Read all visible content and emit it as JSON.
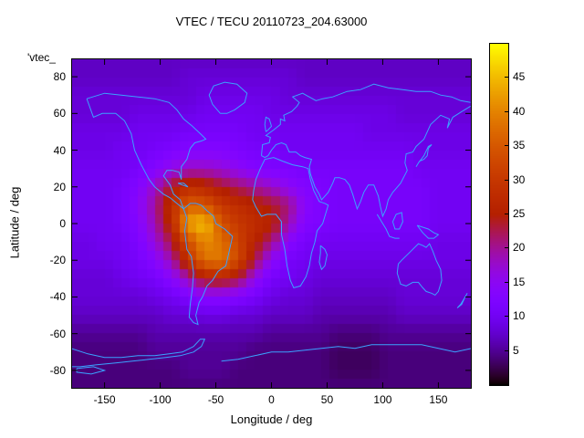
{
  "title": "VTEC / TECU 20110723_204.63000",
  "key_label": "'vtec_",
  "axes": {
    "xlabel": "Longitude / deg",
    "ylabel": "Latitude / deg",
    "x_range": [
      -180,
      180
    ],
    "y_range": [
      -90,
      90
    ],
    "x_ticks": [
      -150,
      -100,
      -50,
      0,
      50,
      100,
      150
    ],
    "y_ticks": [
      -80,
      -60,
      -40,
      -20,
      0,
      20,
      40,
      60,
      80
    ]
  },
  "colorbar": {
    "range": [
      0,
      50
    ],
    "ticks": [
      5,
      10,
      15,
      20,
      25,
      30,
      35,
      40,
      45
    ]
  },
  "chart_data": {
    "type": "heatmap",
    "title": "VTEC / TECU 20110723_204.63000",
    "xlabel": "Longitude / deg",
    "ylabel": "Latitude / deg",
    "x_range": [
      -180,
      180
    ],
    "y_range": [
      -90,
      90
    ],
    "colormap": "gnuplot black-violet-red-yellow",
    "colorbar_range": [
      0,
      50
    ],
    "colorbar_ticks": [
      5,
      10,
      15,
      20,
      25,
      30,
      35,
      40,
      45
    ],
    "coastline_color": "#3ba2ff",
    "units": "TECU",
    "lon": [
      -180,
      -165,
      -150,
      -135,
      -120,
      -105,
      -90,
      -75,
      -60,
      -45,
      -30,
      -15,
      0,
      15,
      30,
      45,
      60,
      75,
      90,
      105,
      120,
      135,
      150,
      165,
      180
    ],
    "lat": [
      90,
      80,
      70,
      60,
      50,
      40,
      30,
      20,
      10,
      0,
      -10,
      -20,
      -30,
      -40,
      -50,
      -60,
      -70,
      -80,
      -90
    ],
    "values_tecu": [
      [
        7,
        7,
        7,
        7,
        7,
        7,
        7,
        7,
        7,
        7,
        7,
        7,
        7,
        7,
        7,
        7,
        7,
        7,
        7,
        7,
        7,
        7,
        7,
        7,
        7
      ],
      [
        7,
        7,
        7,
        7,
        7,
        7,
        7,
        8,
        8,
        8,
        8,
        8,
        8,
        8,
        7,
        7,
        7,
        7,
        7,
        7,
        7,
        7,
        7,
        7,
        7
      ],
      [
        8,
        8,
        8,
        8,
        8,
        8,
        8,
        8,
        9,
        9,
        9,
        9,
        9,
        8,
        8,
        8,
        8,
        8,
        8,
        8,
        8,
        8,
        8,
        8,
        8
      ],
      [
        8,
        8,
        8,
        8,
        9,
        9,
        9,
        9,
        10,
        10,
        10,
        10,
        9,
        9,
        9,
        9,
        9,
        9,
        9,
        9,
        8,
        8,
        8,
        8,
        8
      ],
      [
        9,
        9,
        9,
        9,
        10,
        10,
        10,
        11,
        11,
        11,
        11,
        10,
        10,
        10,
        10,
        10,
        10,
        10,
        9,
        9,
        9,
        9,
        9,
        9,
        9
      ],
      [
        9,
        9,
        9,
        10,
        10,
        11,
        12,
        13,
        13,
        13,
        12,
        11,
        11,
        10,
        10,
        10,
        10,
        10,
        10,
        10,
        10,
        9,
        9,
        9,
        9
      ],
      [
        10,
        10,
        10,
        10,
        11,
        13,
        16,
        18,
        18,
        17,
        15,
        13,
        12,
        12,
        11,
        11,
        11,
        11,
        11,
        11,
        11,
        10,
        10,
        10,
        10
      ],
      [
        10,
        10,
        10,
        11,
        13,
        18,
        24,
        28,
        27,
        24,
        22,
        20,
        18,
        15,
        13,
        12,
        11,
        11,
        11,
        11,
        11,
        11,
        10,
        10,
        10
      ],
      [
        10,
        10,
        10,
        11,
        14,
        20,
        28,
        36,
        35,
        30,
        28,
        26,
        24,
        21,
        14,
        12,
        11,
        11,
        11,
        11,
        11,
        11,
        10,
        10,
        10
      ],
      [
        10,
        10,
        10,
        11,
        13,
        19,
        27,
        43,
        46,
        34,
        30,
        28,
        26,
        19,
        13,
        12,
        11,
        11,
        11,
        11,
        11,
        11,
        10,
        10,
        10
      ],
      [
        9,
        9,
        10,
        10,
        12,
        17,
        23,
        33,
        41,
        38,
        32,
        26,
        21,
        14,
        11,
        10,
        10,
        10,
        10,
        10,
        10,
        10,
        9,
        9,
        9
      ],
      [
        9,
        9,
        9,
        10,
        11,
        14,
        19,
        29,
        38,
        39,
        33,
        23,
        15,
        11,
        10,
        9,
        9,
        9,
        9,
        9,
        9,
        9,
        9,
        9,
        9
      ],
      [
        8,
        8,
        8,
        9,
        10,
        11,
        14,
        19,
        25,
        26,
        23,
        16,
        11,
        10,
        9,
        8,
        8,
        8,
        8,
        8,
        8,
        8,
        8,
        8,
        8
      ],
      [
        8,
        8,
        8,
        8,
        8,
        9,
        10,
        12,
        14,
        14,
        13,
        11,
        9,
        8,
        8,
        7,
        7,
        7,
        7,
        7,
        8,
        8,
        8,
        8,
        8
      ],
      [
        7,
        7,
        7,
        7,
        7,
        7,
        8,
        8,
        9,
        9,
        8,
        8,
        7,
        7,
        7,
        6,
        6,
        6,
        6,
        6,
        7,
        7,
        7,
        7,
        7
      ],
      [
        5,
        5,
        5,
        5,
        5,
        6,
        6,
        6,
        6,
        6,
        6,
        6,
        5,
        5,
        5,
        5,
        4,
        4,
        4,
        5,
        5,
        5,
        5,
        5,
        5
      ],
      [
        4,
        4,
        4,
        4,
        4,
        5,
        5,
        5,
        5,
        5,
        5,
        4,
        4,
        4,
        4,
        4,
        3,
        3,
        3,
        4,
        4,
        4,
        4,
        4,
        4
      ],
      [
        4,
        4,
        4,
        4,
        4,
        4,
        4,
        5,
        5,
        5,
        4,
        4,
        4,
        4,
        4,
        4,
        3,
        3,
        3,
        4,
        4,
        4,
        4,
        4,
        4
      ],
      [
        4,
        4,
        4,
        4,
        4,
        4,
        4,
        4,
        4,
        4,
        4,
        4,
        4,
        4,
        4,
        4,
        4,
        4,
        4,
        4,
        4,
        4,
        4,
        4,
        4
      ]
    ]
  }
}
